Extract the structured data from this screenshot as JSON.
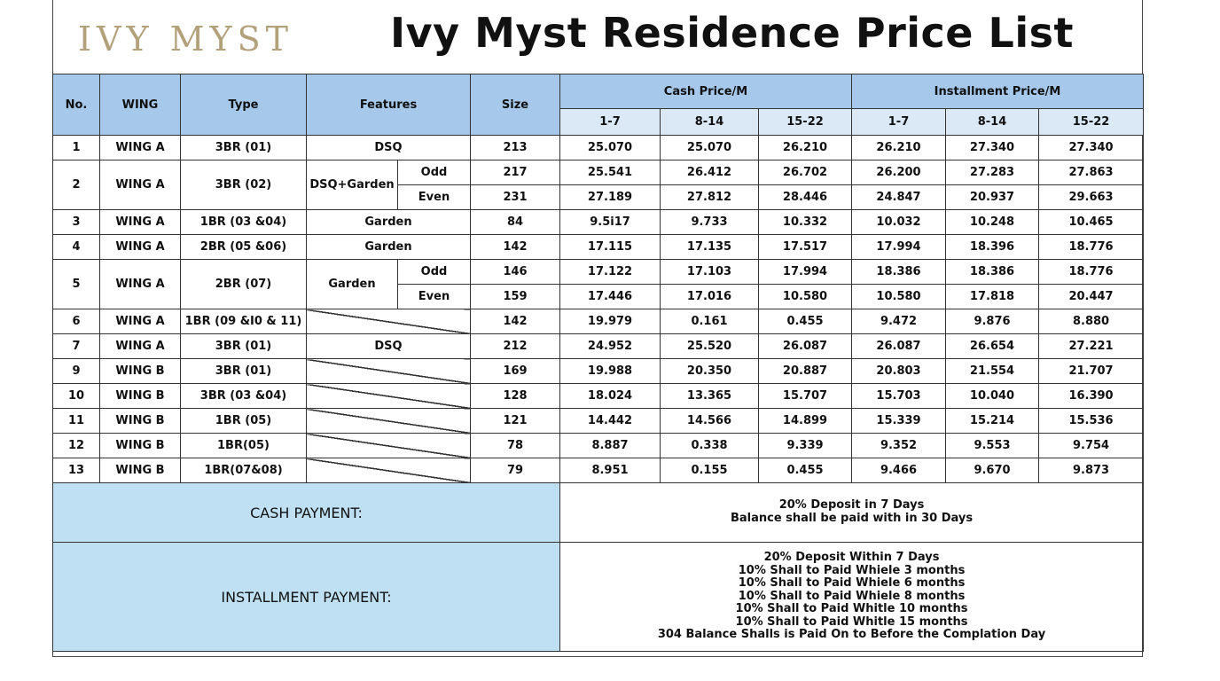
{
  "header": {
    "logo_text": "IVY MYST",
    "title": "Ivy Myst Residence Price List"
  },
  "columns": {
    "no": "No.",
    "wing": "WING",
    "type": "Type",
    "features": "Features",
    "size": "Size",
    "cash": "Cash Price/M",
    "installment": "Installment Price/M",
    "cash_periods": [
      "1-7",
      "8-14",
      "15-22"
    ],
    "installment_periods": [
      "1-7",
      "8-14",
      "15-22"
    ]
  },
  "rows": [
    {
      "no": "1",
      "wing": "WING A",
      "type": "3BR (01)",
      "feature": "DSQ",
      "size": "213",
      "cash": [
        "25.070",
        "25.070",
        "26.210"
      ],
      "inst": [
        "26.210",
        "27.340",
        "27.340"
      ]
    },
    {
      "no": "2",
      "wing": "WING A",
      "type": "3BR (02)",
      "feature": "DSQ+Garden",
      "sub": "Odd",
      "size": "217",
      "cash": [
        "25.541",
        "26.412",
        "26.702"
      ],
      "inst": [
        "26.200",
        "27.283",
        "27.863"
      ]
    },
    {
      "sub": "Even",
      "size": "231",
      "cash": [
        "27.189",
        "27.812",
        "28.446"
      ],
      "inst": [
        "24.847",
        "20.937",
        "29.663"
      ]
    },
    {
      "no": "3",
      "wing": "WING A",
      "type": "1BR (03 &04)",
      "feature": "Garden",
      "size": "84",
      "cash": [
        "9.5i17",
        "9.733",
        "10.332"
      ],
      "inst": [
        "10.032",
        "10.248",
        "10.465"
      ]
    },
    {
      "no": "4",
      "wing": "WING A",
      "type": "2BR (05 &06)",
      "feature": "Garden",
      "size": "142",
      "cash": [
        "17.115",
        "17.135",
        "17.517"
      ],
      "inst": [
        "17.994",
        "18.396",
        "18.776"
      ]
    },
    {
      "no": "5",
      "wing": "WING A",
      "type": "2BR (07)",
      "feature": "Garden",
      "sub": "Odd",
      "size": "146",
      "cash": [
        "17.122",
        "17.103",
        "17.994"
      ],
      "inst": [
        "18.386",
        "18.386",
        "18.776"
      ]
    },
    {
      "sub": "Even",
      "size": "159",
      "cash": [
        "17.446",
        "17.016",
        "10.580"
      ],
      "inst": [
        "10.580",
        "17.818",
        "20.447"
      ]
    },
    {
      "no": "6",
      "wing": "WING A",
      "type": "1BR (09 &I0 & 11)",
      "feature": "",
      "size": "142",
      "cash": [
        "19.979",
        "0.161",
        "0.455"
      ],
      "inst": [
        "9.472",
        "9.876",
        "8.880"
      ]
    },
    {
      "no": "7",
      "wing": "WING A",
      "type": "3BR (01)",
      "feature": "DSQ",
      "size": "212",
      "cash": [
        "24.952",
        "25.520",
        "26.087"
      ],
      "inst": [
        "26.087",
        "26.654",
        "27.221"
      ]
    },
    {
      "no": "9",
      "wing": "WING B",
      "type": "3BR (01)",
      "feature": "",
      "size": "169",
      "cash": [
        "19.988",
        "20.350",
        "20.887"
      ],
      "inst": [
        "20.803",
        "21.554",
        "21.707"
      ]
    },
    {
      "no": "10",
      "wing": "WING B",
      "type": "3BR (03 &04)",
      "feature": "",
      "size": "128",
      "cash": [
        "18.024",
        "13.365",
        "15.707"
      ],
      "inst": [
        "15.703",
        "10.040",
        "16.390"
      ]
    },
    {
      "no": "11",
      "wing": "WING B",
      "type": "1BR (05)",
      "feature": "",
      "size": "121",
      "cash": [
        "14.442",
        "14.566",
        "14.899"
      ],
      "inst": [
        "15.339",
        "15.214",
        "15.536"
      ]
    },
    {
      "no": "12",
      "wing": "WING B",
      "type": "1BR(05)",
      "feature": "",
      "size": "78",
      "cash": [
        "8.887",
        "0.338",
        "9.339"
      ],
      "inst": [
        "9.352",
        "9.553",
        "9.754"
      ]
    },
    {
      "no": "13",
      "wing": "WING B",
      "type": "1BR(07&08)",
      "feature": "",
      "size": "79",
      "cash": [
        "8.951",
        "0.155",
        "0.455"
      ],
      "inst": [
        "9.466",
        "9.670",
        "9.873"
      ]
    }
  ],
  "payment": {
    "cash_label": "CASH PAYMENT:",
    "cash_terms": [
      "20% Deposit in 7 Days",
      "Balance shall be paid with in 30 Days"
    ],
    "installment_label": "INSTALLMENT PAYMENT:",
    "installment_terms": [
      "20% Deposit Within 7 Days",
      "10% Shall to Paid Whiele 3 months",
      "10% Shall to Paid Whiele 6 months",
      "10% Shall to Paid Whiele 8 months",
      "10% Shall to Paid Whitle 10 months",
      "10% Shall to Paid Whitle 15 months",
      "304 Balance Shalls is Paid On to Before the Complation Day"
    ]
  }
}
